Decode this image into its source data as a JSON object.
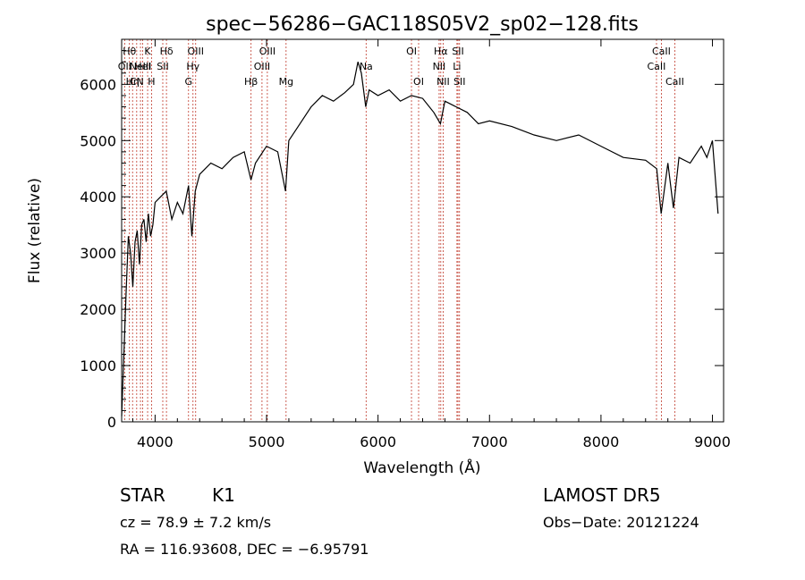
{
  "chart_data": {
    "type": "line",
    "title": "spec−56286−GAC118S05V2_sp02−128.fits",
    "xlabel": "Wavelength (Å)",
    "ylabel": "Flux (relative)",
    "xlim": [
      3700,
      9100
    ],
    "ylim": [
      0,
      6800
    ],
    "xticks": [
      4000,
      5000,
      6000,
      7000,
      8000,
      9000
    ],
    "yticks": [
      0,
      1000,
      2000,
      3000,
      4000,
      5000,
      6000
    ],
    "grid": false,
    "series": [
      {
        "x": [
          3700,
          3720,
          3740,
          3760,
          3780,
          3800,
          3820,
          3840,
          3860,
          3880,
          3900,
          3920,
          3940,
          3960,
          3980,
          4000,
          4050,
          4100,
          4150,
          4200,
          4250,
          4300,
          4330,
          4360,
          4400,
          4500,
          4600,
          4700,
          4800,
          4860,
          4900,
          5000,
          5100,
          5170,
          5200,
          5300,
          5400,
          5500,
          5600,
          5700,
          5780,
          5820,
          5850,
          5890,
          5920,
          6000,
          6100,
          6200,
          6300,
          6400,
          6500,
          6560,
          6600,
          6700,
          6800,
          6900,
          7000,
          7200,
          7400,
          7600,
          7800,
          8000,
          8200,
          8400,
          8500,
          8540,
          8600,
          8650,
          8700,
          8800,
          8900,
          8950,
          9000,
          9050
        ],
        "y": [
          100,
          1200,
          2300,
          3300,
          3000,
          2400,
          3200,
          3400,
          2800,
          3500,
          3600,
          3200,
          3700,
          3300,
          3500,
          3900,
          4000,
          4100,
          3600,
          3900,
          3700,
          4200,
          3300,
          4100,
          4400,
          4600,
          4500,
          4700,
          4800,
          4300,
          4600,
          4900,
          4800,
          4100,
          5000,
          5300,
          5600,
          5800,
          5700,
          5850,
          6000,
          6400,
          6200,
          5600,
          5900,
          5800,
          5900,
          5700,
          5800,
          5750,
          5500,
          5300,
          5700,
          5600,
          5500,
          5300,
          5350,
          5250,
          5100,
          5000,
          5100,
          4900,
          4700,
          4650,
          4500,
          3700,
          4600,
          3800,
          4700,
          4600,
          4900,
          4700,
          5000,
          3700
        ]
      }
    ],
    "lines": [
      {
        "x": 3727,
        "label": "OII",
        "row": 2
      },
      {
        "x": 3770,
        "label": "Hθ",
        "row": 1
      },
      {
        "x": 3798,
        "label": "Hη",
        "row": 3
      },
      {
        "x": 3835,
        "label": "CN",
        "row": 3
      },
      {
        "x": 3869,
        "label": "NeIII",
        "row": 2
      },
      {
        "x": 3889,
        "label": "HeI",
        "row": 2
      },
      {
        "x": 3933,
        "label": "K",
        "row": 1
      },
      {
        "x": 3968,
        "label": "H",
        "row": 3
      },
      {
        "x": 4069,
        "label": "SII",
        "row": 2
      },
      {
        "x": 4102,
        "label": "Hδ",
        "row": 1
      },
      {
        "x": 4300,
        "label": "G",
        "row": 3
      },
      {
        "x": 4340,
        "label": "Hγ",
        "row": 2
      },
      {
        "x": 4364,
        "label": "OIII",
        "row": 1
      },
      {
        "x": 4861,
        "label": "Hβ",
        "row": 3
      },
      {
        "x": 4959,
        "label": "OIII",
        "row": 2
      },
      {
        "x": 5007,
        "label": "OIII",
        "row": 1
      },
      {
        "x": 5175,
        "label": "Mg",
        "row": 3
      },
      {
        "x": 5893,
        "label": "Na",
        "row": 2
      },
      {
        "x": 6300,
        "label": "OI",
        "row": 1
      },
      {
        "x": 6364,
        "label": "OI",
        "row": 3
      },
      {
        "x": 6548,
        "label": "NII",
        "row": 2
      },
      {
        "x": 6563,
        "label": "Hα",
        "row": 1
      },
      {
        "x": 6584,
        "label": "NII",
        "row": 3
      },
      {
        "x": 6708,
        "label": "Li",
        "row": 2
      },
      {
        "x": 6717,
        "label": "SII",
        "row": 1
      },
      {
        "x": 6731,
        "label": "SII",
        "row": 3
      },
      {
        "x": 8498,
        "label": "CaII",
        "row": 2
      },
      {
        "x": 8542,
        "label": "CaII",
        "row": 1
      },
      {
        "x": 8662,
        "label": "CaII",
        "row": 3
      }
    ]
  },
  "info": {
    "class": "STAR",
    "subclass": "K1",
    "survey": "LAMOST DR5",
    "cz": "cz = 78.9 ± 7.2 km/s",
    "obsdate": "Obs−Date: 20121224",
    "radec": "RA = 116.93608, DEC =  −6.95791"
  }
}
